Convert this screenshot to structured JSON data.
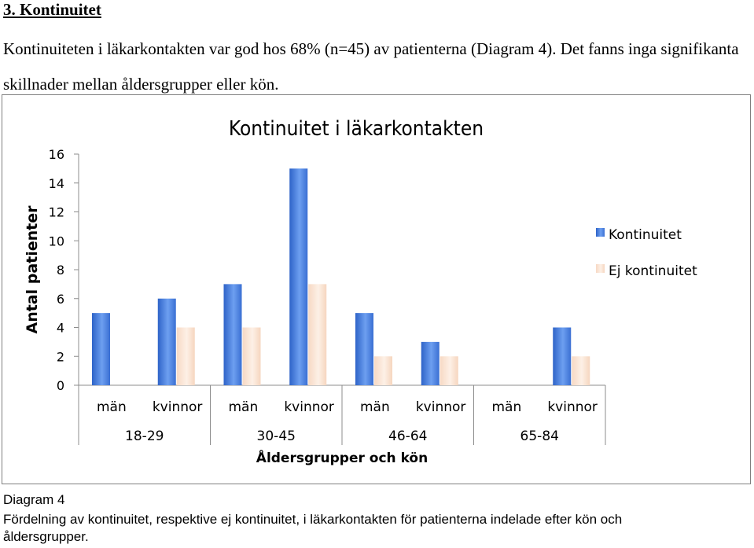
{
  "heading": "3. Kontinuitet",
  "paragraph": "Kontinuiteten i läkarkontakten var god hos 68% (n=45) av patienterna (Diagram 4). Det fanns inga signifikanta skillnader mellan åldersgrupper eller kön.",
  "caption": {
    "label": "Diagram 4",
    "text": "Fördelning av kontinuitet, respektive ej kontinuitet, i läkarkontakten för patienterna indelade efter kön och åldersgrupper."
  },
  "chart_data": {
    "type": "bar",
    "title": "Kontinuitet i läkarkontakten",
    "xlabel": "Åldersgrupper och kön",
    "ylabel": "Antal patienter",
    "ylim": [
      0,
      16
    ],
    "yticks": [
      0,
      2,
      4,
      6,
      8,
      10,
      12,
      14,
      16
    ],
    "categories": [
      "män",
      "kvinnor",
      "män",
      "kvinnor",
      "män",
      "kvinnor",
      "män",
      "kvinnor"
    ],
    "groups": [
      "18-29",
      "30-45",
      "46-64",
      "65-84"
    ],
    "series": [
      {
        "name": "Kontinuitet",
        "color": "#4a7ed6",
        "values": [
          5,
          6,
          7,
          15,
          5,
          3,
          0,
          4
        ]
      },
      {
        "name": "Ej kontinuitet",
        "color": "#fbe5d6",
        "values": [
          0,
          4,
          4,
          7,
          2,
          2,
          0,
          2
        ]
      }
    ],
    "grid": false,
    "legend": "right"
  }
}
